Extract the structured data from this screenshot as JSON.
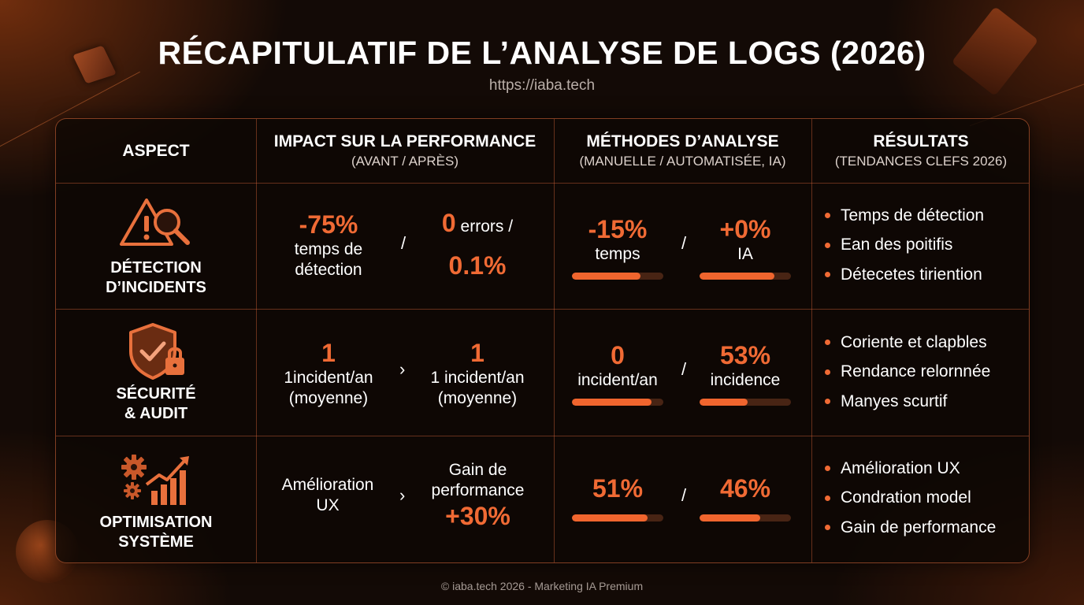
{
  "title": "RÉCAPITULATIF DE L’ANALYSE DE LOGS (2026)",
  "url": "https://iaba.tech",
  "footer": "© iaba.tech 2026 - Marketing IA Premium",
  "accent_color": "#f06a34",
  "headers": {
    "aspect": "ASPECT",
    "impact": {
      "main": "IMPACT SUR LA PERFORMANCE",
      "sub": "(AVANT / APRÈS)"
    },
    "methods": {
      "main": "MÉTHODES D’ANALYSE",
      "sub": "(MANUELLE / AUTOMATISÉE, IA)"
    },
    "results": {
      "main": "RÉSULTATS",
      "sub": "(TENDANCES CLEFS 2026)"
    }
  },
  "rows": [
    {
      "aspect": {
        "line1": "DÉTECTION",
        "line2": "D’INCIDENTS",
        "icon": "warning-magnifier-icon"
      },
      "impact": {
        "before": {
          "big": "-75%",
          "line1": "temps de",
          "line2": "détection"
        },
        "separator": "/",
        "after": {
          "big": "0",
          "suffix": " errors /",
          "line2": "0.1%"
        }
      },
      "methods": {
        "manual": {
          "big": "-15%",
          "label": "temps",
          "bar": 0.75
        },
        "separator": "/",
        "ai": {
          "big": "+0%",
          "label": "IA",
          "bar": 0.82
        }
      },
      "results": [
        "Temps de détection",
        "Ean des poitifis",
        "Détecetes tiriention"
      ]
    },
    {
      "aspect": {
        "line1": "SÉCURITÉ",
        "line2": "& AUDIT",
        "icon": "shield-lock-icon"
      },
      "impact": {
        "before": {
          "big": "1",
          "line1": "1incident/an",
          "line2": "(moyenne)"
        },
        "separator": "›",
        "after": {
          "big": "1",
          "line1": "1 incident/an",
          "line2": "(moyenne)"
        }
      },
      "methods": {
        "manual": {
          "big": "0",
          "label": "incident/an",
          "bar": 0.87
        },
        "separator": "/",
        "ai": {
          "big": "53%",
          "label": "incidence",
          "bar": 0.53
        }
      },
      "results": [
        "Coriente et clapbles",
        "Rendance relornnée",
        "Manyes scurtif"
      ]
    },
    {
      "aspect": {
        "line1": "OPTIMISATION",
        "line2": "SYSTÈME",
        "icon": "gears-growth-chart-icon"
      },
      "impact": {
        "before": {
          "line1": "Amélioration",
          "line2": "UX"
        },
        "separator": "›",
        "after": {
          "line1": "Gain de",
          "line2": "performance",
          "big": "+30%"
        }
      },
      "methods": {
        "manual": {
          "big": "51%",
          "bar": 0.83
        },
        "separator": "/",
        "ai": {
          "big": "46%",
          "bar": 0.66
        }
      },
      "results": [
        "Amélioration UX",
        "Condration model",
        "Gain de performance"
      ]
    }
  ]
}
